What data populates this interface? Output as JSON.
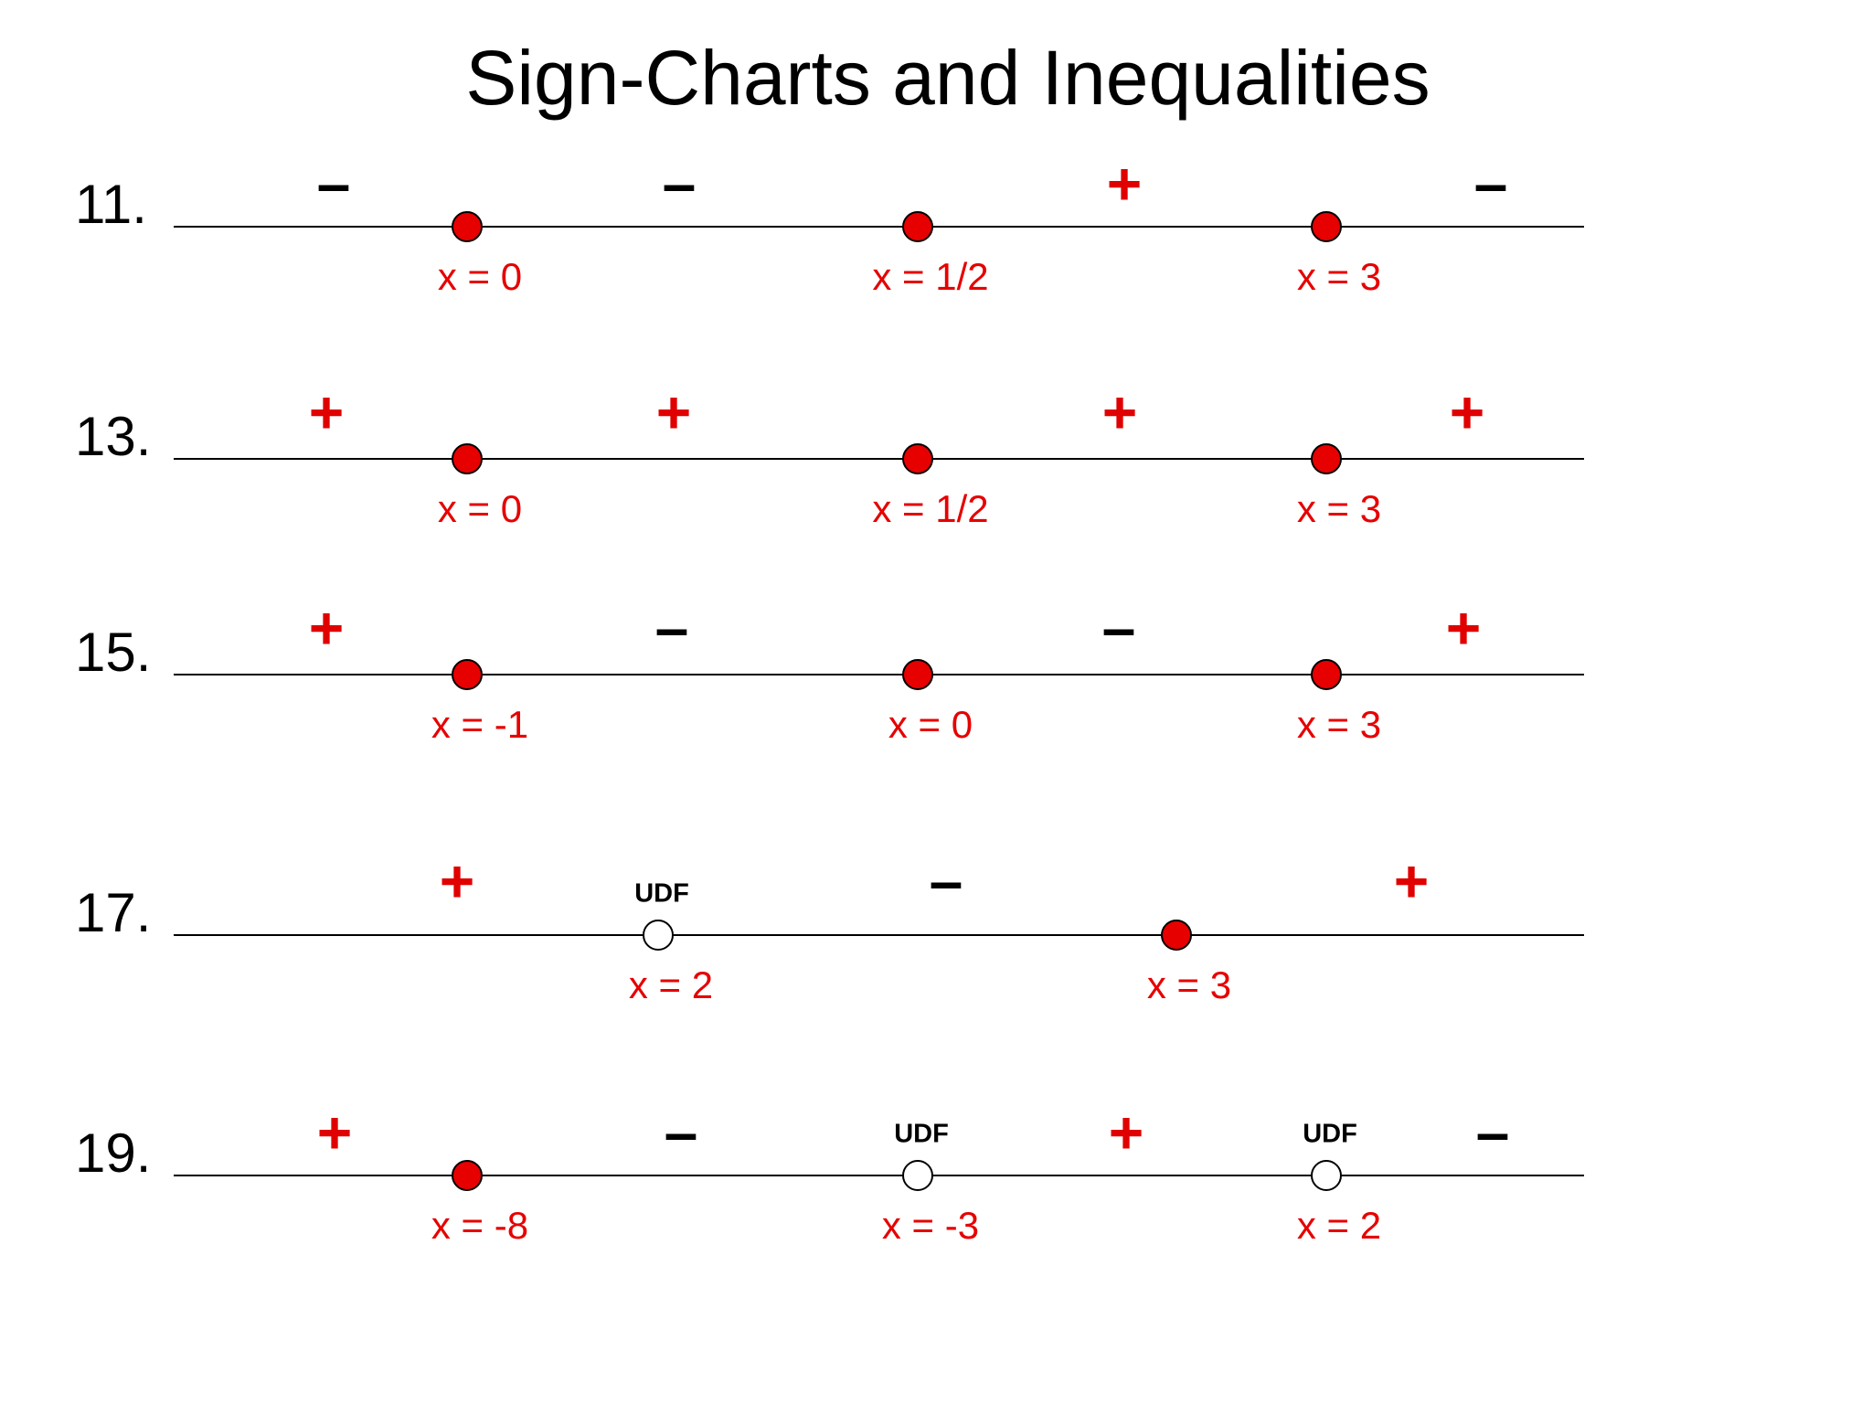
{
  "title": "Sign-Charts and Inequalities",
  "problems": [
    {
      "number": "11.",
      "signs": [
        {
          "text": "–",
          "color": "#000000"
        },
        {
          "text": "–",
          "color": "#000000"
        },
        {
          "text": "+",
          "color": "#e00000"
        },
        {
          "text": "–",
          "color": "#000000"
        }
      ],
      "points": [
        {
          "label": "x = 0",
          "filled": true
        },
        {
          "label": "x = 1/2",
          "filled": true
        },
        {
          "label": "x = 3",
          "filled": true
        }
      ]
    },
    {
      "number": "13.",
      "signs": [
        {
          "text": "+",
          "color": "#e00000"
        },
        {
          "text": "+",
          "color": "#e00000"
        },
        {
          "text": "+",
          "color": "#e00000"
        },
        {
          "text": "+",
          "color": "#e00000"
        }
      ],
      "points": [
        {
          "label": "x = 0",
          "filled": true
        },
        {
          "label": "x = 1/2",
          "filled": true
        },
        {
          "label": "x = 3",
          "filled": true
        }
      ]
    },
    {
      "number": "15.",
      "signs": [
        {
          "text": "+",
          "color": "#e00000"
        },
        {
          "text": "–",
          "color": "#000000"
        },
        {
          "text": "–",
          "color": "#000000"
        },
        {
          "text": "+",
          "color": "#e00000"
        }
      ],
      "points": [
        {
          "label": "x = -1",
          "filled": true
        },
        {
          "label": "x = 0",
          "filled": true
        },
        {
          "label": "x = 3",
          "filled": true
        }
      ]
    },
    {
      "number": "17.",
      "signs": [
        {
          "text": "+",
          "color": "#e00000"
        },
        {
          "text": "–",
          "color": "#000000"
        },
        {
          "text": "+",
          "color": "#e00000"
        }
      ],
      "points": [
        {
          "label": "x = 2",
          "filled": false,
          "note": "UDF"
        },
        {
          "label": "x = 3",
          "filled": true
        }
      ]
    },
    {
      "number": "19.",
      "signs": [
        {
          "text": "+",
          "color": "#e00000"
        },
        {
          "text": "–",
          "color": "#000000"
        },
        {
          "text": "+",
          "color": "#e00000"
        },
        {
          "text": "–",
          "color": "#000000"
        }
      ],
      "points": [
        {
          "label": "x = -8",
          "filled": true
        },
        {
          "label": "x = -3",
          "filled": false,
          "note": "UDF"
        },
        {
          "label": "x = 2",
          "filled": false,
          "note": "UDF"
        }
      ]
    }
  ]
}
